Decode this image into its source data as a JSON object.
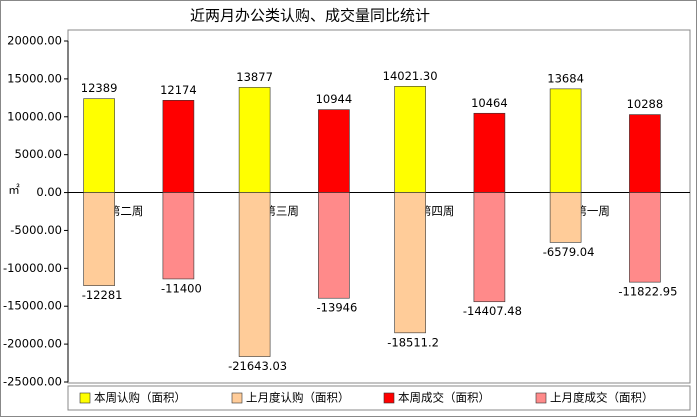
{
  "chart_data": {
    "type": "bar",
    "title": "近两月办公类认购、成交量同比统计",
    "y_label": "㎡",
    "categories": [
      "七月第二周",
      "七月第三周",
      "七月第四周",
      "八月第一周"
    ],
    "series": [
      {
        "name": "本周认购（面积）",
        "color": "#ffff00",
        "values": [
          12389,
          13877,
          14021.3,
          13684
        ],
        "value_labels": [
          "12389",
          "13877",
          "14021.30",
          "13684"
        ]
      },
      {
        "name": "上月度认购（面积）",
        "color": "#ffcc99",
        "values": [
          -12281,
          -21643.03,
          -18511.2,
          -6579.04
        ],
        "value_labels": [
          "-12281",
          "-21643.03",
          "-18511.2",
          "-6579.04"
        ]
      },
      {
        "name": "本周成交（面积）",
        "color": "#ff0000",
        "values": [
          12174,
          10944,
          10464,
          10288
        ],
        "value_labels": [
          "12174",
          "10944",
          "10464",
          "10288"
        ]
      },
      {
        "name": "上月度成交（面积）",
        "color": "#ff8a8a",
        "values": [
          -11400,
          -13946,
          -14407.48,
          -11822.95
        ],
        "value_labels": [
          "-11400",
          "-13946",
          "-14407.48",
          "-11822.95"
        ]
      }
    ],
    "ylim": [
      -25000,
      20000
    ],
    "yticks": [
      {
        "value": 20000,
        "label": "20000.00"
      },
      {
        "value": 15000,
        "label": "15000.00"
      },
      {
        "value": 10000,
        "label": "10000.00"
      },
      {
        "value": 5000,
        "label": "5000.00"
      },
      {
        "value": 0,
        "label": "0.00"
      },
      {
        "value": -5000,
        "label": "-5000.00"
      },
      {
        "value": -10000,
        "label": "-10000.00"
      },
      {
        "value": -15000,
        "label": "-15000.00"
      },
      {
        "value": -20000,
        "label": "-20000.00"
      },
      {
        "value": -25000,
        "label": "-25000.00"
      }
    ],
    "legend": "bottom"
  }
}
